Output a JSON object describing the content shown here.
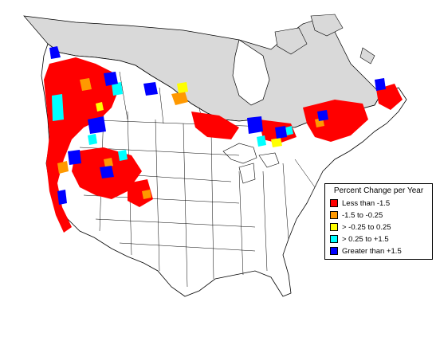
{
  "legend": {
    "title": "Percent Change per Year",
    "items": [
      {
        "label": "Less than -1.5",
        "color": "#ff0000"
      },
      {
        "label": "-1.5 to -0.25",
        "color": "#ff9900"
      },
      {
        "label": "> -0.25 to 0.25",
        "color": "#ffff00"
      },
      {
        "label": "> 0.25 to +1.5",
        "color": "#00ffff"
      },
      {
        "label": "Greater than +1.5",
        "color": "#0000ff"
      }
    ]
  },
  "colors": {
    "background": "#ffffff",
    "canada_north": "#d9d9d9",
    "borders": "#000000",
    "decline_strong": "#ff0000",
    "decline_moderate": "#ff9900",
    "stable": "#ffff00",
    "increase_moderate": "#00ffff",
    "increase_strong": "#0000ff"
  }
}
